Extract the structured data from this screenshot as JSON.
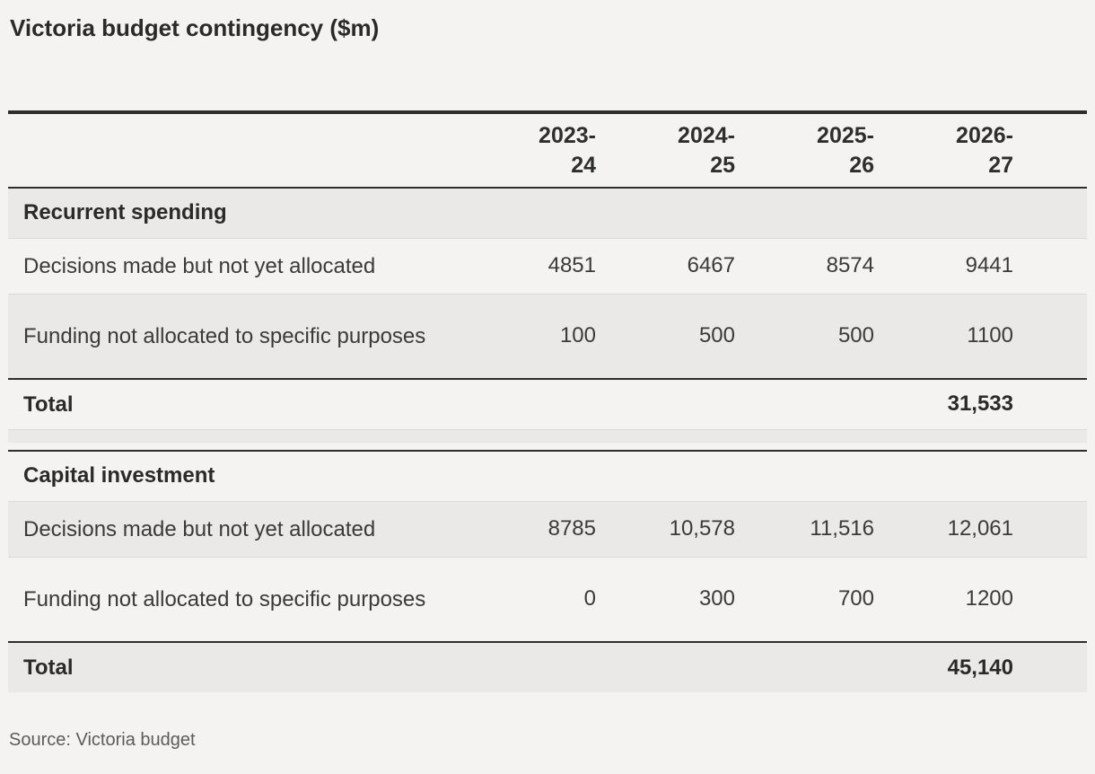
{
  "chart_data": {
    "type": "table",
    "title": "Victoria budget contingency ($m)",
    "unit": "$m",
    "columns": [
      "2023-24",
      "2024-25",
      "2025-26",
      "2026-27"
    ],
    "column_display": [
      "2023-\n24",
      "2024-\n25",
      "2025-\n26",
      "2026-\n27"
    ],
    "sections": [
      {
        "header": "Recurrent spending",
        "rows": [
          {
            "label": "Decisions made but not yet allocated",
            "values": [
              4851,
              6467,
              8574,
              9441
            ],
            "display": [
              "4851",
              "6467",
              "8574",
              "9441"
            ]
          },
          {
            "label": "Funding not allocated to specific purposes",
            "values": [
              100,
              500,
              500,
              1100
            ],
            "display": [
              "100",
              "500",
              "500",
              "1100"
            ]
          }
        ],
        "total": {
          "label": "Total",
          "value": 31533,
          "display": "31,533"
        }
      },
      {
        "header": "Capital investment",
        "rows": [
          {
            "label": "Decisions made but not yet allocated",
            "values": [
              8785,
              10578,
              11516,
              12061
            ],
            "display": [
              "8785",
              "10,578",
              "11,516",
              "12,061"
            ]
          },
          {
            "label": "Funding not allocated to specific purposes",
            "values": [
              0,
              300,
              700,
              1200
            ],
            "display": [
              "0",
              "300",
              "700",
              "1200"
            ]
          }
        ],
        "total": {
          "label": "Total",
          "value": 45140,
          "display": "45,140"
        }
      }
    ],
    "source": "Source: Victoria budget",
    "layout": {
      "grid": "horizontal-rules",
      "zebra": true,
      "legend_position": "none"
    }
  },
  "colors": {
    "page_background": "#f4f3f1",
    "row_band": "#eae9e7",
    "rule_dark": "#2e2e2e",
    "separator": "#dbdad8",
    "heading_text": "#2a2a2a",
    "body_text": "#3a3a3a",
    "source_text": "#5c5c5c"
  }
}
